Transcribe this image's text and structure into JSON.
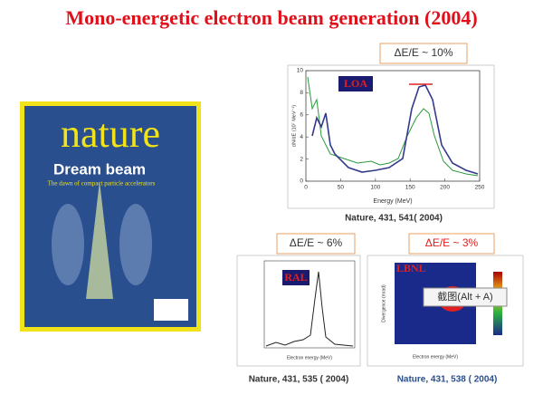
{
  "title": "Mono-energetic electron beam generation (2004)",
  "cover": {
    "masthead": "nature",
    "headline": "Dream beam",
    "subhead": "The dawn of compact particle accelerators"
  },
  "panels": [
    {
      "lab": "LOA",
      "spread": "ΔE/E ~ 10%",
      "citation": "Nature, 431, 541( 2004)",
      "x_label": "Energy (MeV)",
      "y_label": "dN/dE (10⁷ MeV⁻¹)",
      "xticks": [
        0,
        50,
        100,
        150,
        200,
        250
      ],
      "yticks": [
        0,
        2,
        4,
        6,
        8,
        10
      ]
    },
    {
      "lab": "RAL",
      "spread": "ΔE/E ~ 6%",
      "citation": "Nature, 431, 535 ( 2004)",
      "x_label": "Electron energy (MeV)"
    },
    {
      "lab": "LBNL",
      "spread": "ΔE/E ~ 3%",
      "citation": "Nature, 431, 538 ( 2004)",
      "x_label": "Electron energy (MeV)",
      "y_label": "Divergence (mrad)",
      "tooltip": "截图(Alt + A)"
    }
  ]
}
